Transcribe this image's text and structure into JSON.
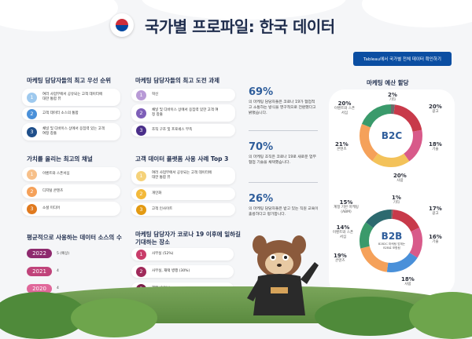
{
  "header": {
    "title": "국가별 프로파일: 한국 데이터",
    "cta_label": "Tableau에서 국가별 전체 데이터 확인하기"
  },
  "priorities": {
    "title": "마케팅 담당자들의 최고 우선 순위",
    "items": [
      {
        "num": "1",
        "text": "여러 사업부에서 공유되는 고객 데이터에 대한 통합 뷰"
      },
      {
        "num": "2",
        "text": "고객 데이터 소스의 통합"
      },
      {
        "num": "3",
        "text": "채널 및 디바이스 상에서 응집력 있는 고객 여정 창출"
      }
    ]
  },
  "challenges": {
    "title": "마케팅 담당자들의 최고 도전 과제",
    "items": [
      {
        "num": "1",
        "text": "혁신"
      },
      {
        "num": "2",
        "text": "채널 및 디바이스 상에서 응집력 있한 고객 여정 창출"
      },
      {
        "num": "3",
        "text": "조직 구조 및 프로세스 부족"
      }
    ]
  },
  "channels": {
    "title": "가치를 올리는 최고의 채널",
    "items": [
      {
        "num": "1",
        "text": "이벤트와 스폰서십"
      },
      {
        "num": "2",
        "text": "디지털 콘텐츠"
      },
      {
        "num": "3",
        "text": "소셜 미디어"
      }
    ]
  },
  "platform": {
    "title": "고객 데이터 플랫폼 사용 사례 Top 3",
    "items": [
      {
        "num": "1",
        "text": "여러 사업부에서 공유되는 고객 데이터에 대한 통합 뷰"
      },
      {
        "num": "2",
        "text": "개인화"
      },
      {
        "num": "3",
        "text": "고객 인사이트"
      }
    ]
  },
  "stats": [
    {
      "value": "69%",
      "text": "의 마케팅 담당자들은 코로나 19가 협업적 고 소통하는 방식을 영구적으로 전환했다고 밝혔습니다."
    },
    {
      "value": "70%",
      "text": "의 마케팅 조직은 코로나 19로 새로운 업무 협업 기술을 채택했습니다."
    },
    {
      "value": "26%",
      "text": "의 마케팅 담당자들은 받고 있는 직원 교육이 훌륭하다고 평가합니다."
    }
  ],
  "sources": {
    "title": "평균적으로 사용하는 데이터 소스의 수",
    "rows": [
      {
        "year": "2022",
        "value": "5 (예상)"
      },
      {
        "year": "2021",
        "value": "4"
      },
      {
        "year": "2020",
        "value": "4"
      }
    ]
  },
  "covid": {
    "title": "마케팅 담당자가 코로나 19 이후에 일하길 기대하는 장소",
    "items": [
      {
        "num": "1",
        "text": "사무실 (52%)"
      },
      {
        "num": "2",
        "text": "사무실, 재택 병행 (30%)"
      },
      {
        "num": "3",
        "text": "재택 (18%)"
      }
    ]
  },
  "budget": {
    "title": "마케팅 예산 할당",
    "b2c": {
      "label": "B2C",
      "slices": [
        {
          "pct": "2%",
          "name": "기타"
        },
        {
          "pct": "20%",
          "name": "광고"
        },
        {
          "pct": "18%",
          "name": "기술"
        },
        {
          "pct": "20%",
          "name": "사람"
        },
        {
          "pct": "21%",
          "name": "콘텐츠"
        },
        {
          "pct": "20%",
          "name": "이벤트와 스폰서십"
        }
      ]
    },
    "b2b": {
      "label": "B2B",
      "sub": "B2B2C 마케팅 업체는 B2B로 포함됨",
      "slices": [
        {
          "pct": "1%",
          "name": "기타"
        },
        {
          "pct": "17%",
          "name": "광고"
        },
        {
          "pct": "16%",
          "name": "기술"
        },
        {
          "pct": "18%",
          "name": "사람"
        },
        {
          "pct": "19%",
          "name": "콘텐츠"
        },
        {
          "pct": "14%",
          "name": "이벤트와 스폰서십"
        },
        {
          "pct": "15%",
          "name": "계정 기반 마케팅 (ABM)"
        }
      ]
    }
  },
  "colors": {
    "blue": "#4a90d9",
    "navy": "#2e5d9b",
    "orange": "#f5a15a",
    "purple": "#8e2a6e",
    "green": "#3a9a6b",
    "teal": "#2d8a8f",
    "red": "#d93c4a",
    "yellow": "#f3c25a",
    "pink": "#e86c7a"
  }
}
